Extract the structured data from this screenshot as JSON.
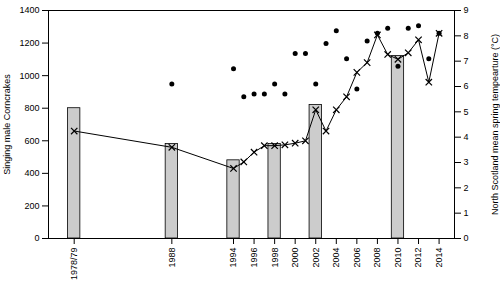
{
  "chart_data": {
    "type": "combo",
    "ylabel": "Singing male Corncrakes",
    "y2label": "North Scotland mean spring tempearture (°C)",
    "xlim": [
      1976,
      2015.5
    ],
    "xticks": [
      {
        "value": 1978.5,
        "label": "1978/79"
      },
      1988,
      1994,
      1996,
      1998,
      2000,
      2002,
      2004,
      2006,
      2008,
      2010,
      2012,
      2014
    ],
    "ylim": [
      0,
      1400
    ],
    "yticks": [
      0,
      200,
      400,
      600,
      800,
      1000,
      1200,
      1400
    ],
    "y2lim": [
      0,
      9
    ],
    "y2ticks": [
      0,
      1,
      2,
      3,
      4,
      5,
      6,
      7,
      8,
      9
    ],
    "series": [
      {
        "type": "bar",
        "x": [
          1978.5,
          1988,
          1994,
          1998,
          2002,
          2010
        ],
        "values": [
          800,
          580,
          480,
          580,
          820,
          1120
        ],
        "color": "#cccccc"
      },
      {
        "type": "line",
        "x": [
          1978.5,
          1988,
          1994,
          1995,
          1996,
          1997,
          1998,
          1999,
          2000,
          2001,
          2002,
          2003,
          2004,
          2005,
          2006,
          2007,
          2008,
          2009,
          2010,
          2011,
          2012,
          2013,
          2014
        ],
        "values": [
          660,
          560,
          430,
          470,
          530,
          570,
          570,
          575,
          585,
          600,
          790,
          660,
          790,
          870,
          1020,
          1080,
          1250,
          1130,
          1100,
          1140,
          1220,
          960,
          1260
        ],
        "color": "black",
        "marker": "x",
        "line_style": "solid"
      },
      {
        "type": "scatter",
        "axis": "y2",
        "x": [
          1988,
          1994,
          1995,
          1996,
          1997,
          1998,
          1999,
          2000,
          2001,
          2002,
          2003,
          2004,
          2005,
          2006,
          2007,
          2008,
          2009,
          2010,
          2011,
          2012,
          2013,
          2014
        ],
        "values": [
          6.1,
          6.7,
          5.6,
          5.7,
          5.7,
          6.1,
          5.7,
          7.3,
          7.3,
          6.1,
          7.7,
          8.2,
          7.1,
          5.9,
          7.8,
          8.1,
          8.3,
          6.8,
          8.3,
          8.4,
          7.1,
          8.1
        ],
        "color": "black",
        "marker": "o"
      }
    ]
  }
}
